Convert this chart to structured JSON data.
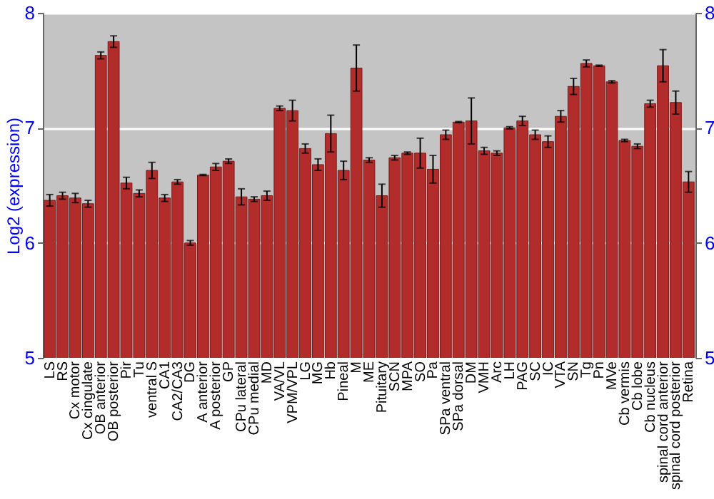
{
  "chart_data": {
    "type": "bar",
    "ylabel": "Log2 (expression)",
    "categories": [
      "LS",
      "RS",
      "Cx motor",
      "Cx cingulate",
      "OB anterior",
      "OB posterior",
      "Pir",
      "Tu",
      "ventral S",
      "CA1",
      "CA2/CA3",
      "DG",
      "A anterior",
      "A posterior",
      "GP",
      "CPu lateral",
      "CPu medial",
      "MD",
      "VA/VL",
      "VPM/VPL",
      "LG",
      "MG",
      "Hb",
      "Pineal",
      "M",
      "ME",
      "Pituitary",
      "SCN",
      "MPA",
      "SO",
      "Pa",
      "SPa ventral",
      "SPa dorsal",
      "DM",
      "VMH",
      "Arc",
      "LH",
      "PAG",
      "SC",
      "IC",
      "VTA",
      "SN",
      "Tg",
      "Pn",
      "MVe",
      "Cb vermis",
      "Cb lobe",
      "Cb nucleus",
      "spinal cord anterior",
      "spinal cord posterior",
      "Retina"
    ],
    "values": [
      6.37,
      6.41,
      6.39,
      6.34,
      7.63,
      7.75,
      6.52,
      6.43,
      6.63,
      6.39,
      6.53,
      6.0,
      6.59,
      6.66,
      6.71,
      6.4,
      6.38,
      6.41,
      7.17,
      7.15,
      6.82,
      6.68,
      6.95,
      6.63,
      7.52,
      6.72,
      6.41,
      6.74,
      6.78,
      6.78,
      6.64,
      6.94,
      7.05,
      7.06,
      6.8,
      6.78,
      7.0,
      7.06,
      6.94,
      6.88,
      7.1,
      7.36,
      7.56,
      7.54,
      7.4,
      6.89,
      6.84,
      7.21,
      7.54,
      7.22,
      6.53
    ],
    "errors": [
      0.05,
      0.03,
      0.04,
      0.03,
      0.03,
      0.05,
      0.05,
      0.03,
      0.07,
      0.03,
      0.02,
      0.02,
      0.005,
      0.03,
      0.02,
      0.07,
      0.02,
      0.04,
      0.02,
      0.09,
      0.04,
      0.05,
      0.16,
      0.08,
      0.2,
      0.02,
      0.1,
      0.02,
      0.01,
      0.13,
      0.12,
      0.04,
      0.005,
      0.2,
      0.03,
      0.02,
      0.01,
      0.04,
      0.04,
      0.05,
      0.05,
      0.07,
      0.03,
      0.005,
      0.01,
      0.01,
      0.02,
      0.03,
      0.14,
      0.1,
      0.09
    ],
    "color": "#b22c2c",
    "ylim": [
      5,
      8
    ],
    "yticks": [
      5,
      6,
      7,
      8
    ],
    "y2lim": [
      5,
      8
    ],
    "y2ticks": [
      5,
      6,
      7,
      8
    ],
    "grid": "y"
  }
}
